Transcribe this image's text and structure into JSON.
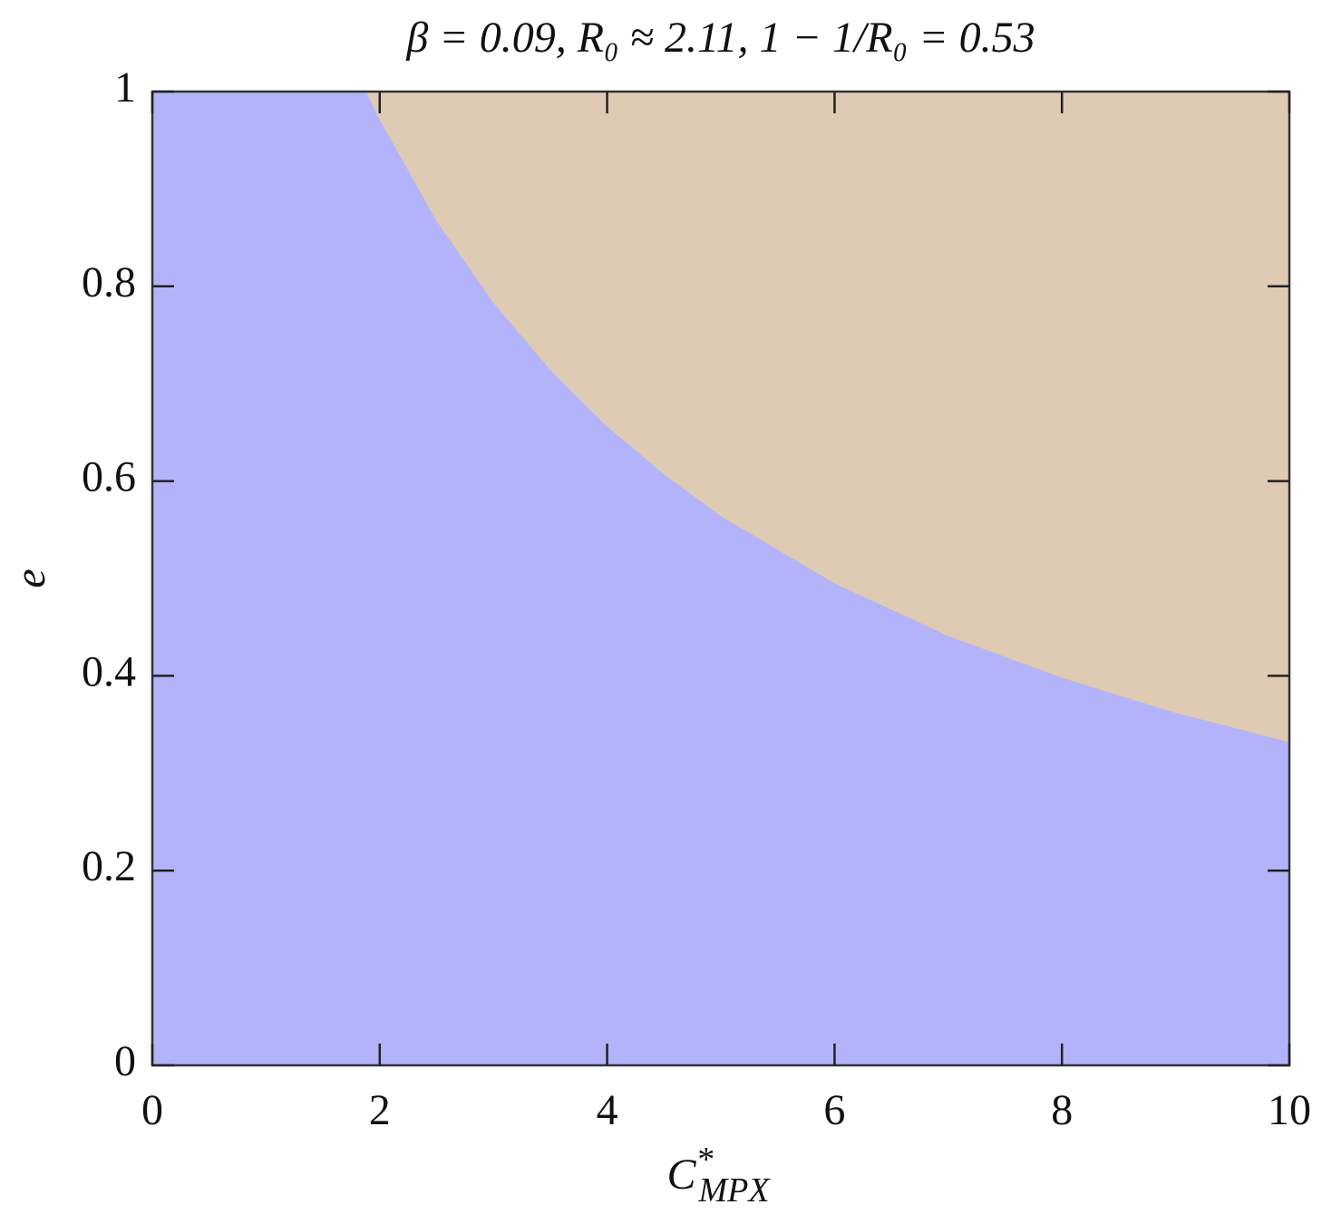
{
  "chart_data": {
    "type": "region",
    "title": "β = 0.09, R₀ ≈ 2.11, 1 − 1/R₀ = 0.53",
    "xlabel": {
      "base": "C",
      "sup": "*",
      "sub": "MPX"
    },
    "ylabel": "e",
    "x": [
      1.88,
      2,
      2.5,
      3,
      3.5,
      4,
      4.5,
      5,
      6,
      7,
      8,
      9,
      10
    ],
    "values": [
      1.0,
      0.971,
      0.867,
      0.783,
      0.714,
      0.656,
      0.607,
      0.564,
      0.495,
      0.441,
      0.398,
      0.362,
      0.332
    ],
    "below_color": "#b3b3fc",
    "above_color": "#dfcab3",
    "xlim": [
      0,
      10
    ],
    "xticks": [
      0,
      2,
      4,
      6,
      8,
      10
    ],
    "ylim": [
      0,
      1
    ],
    "yticks": [
      0,
      0.2,
      0.4,
      0.6,
      0.8,
      1
    ]
  }
}
